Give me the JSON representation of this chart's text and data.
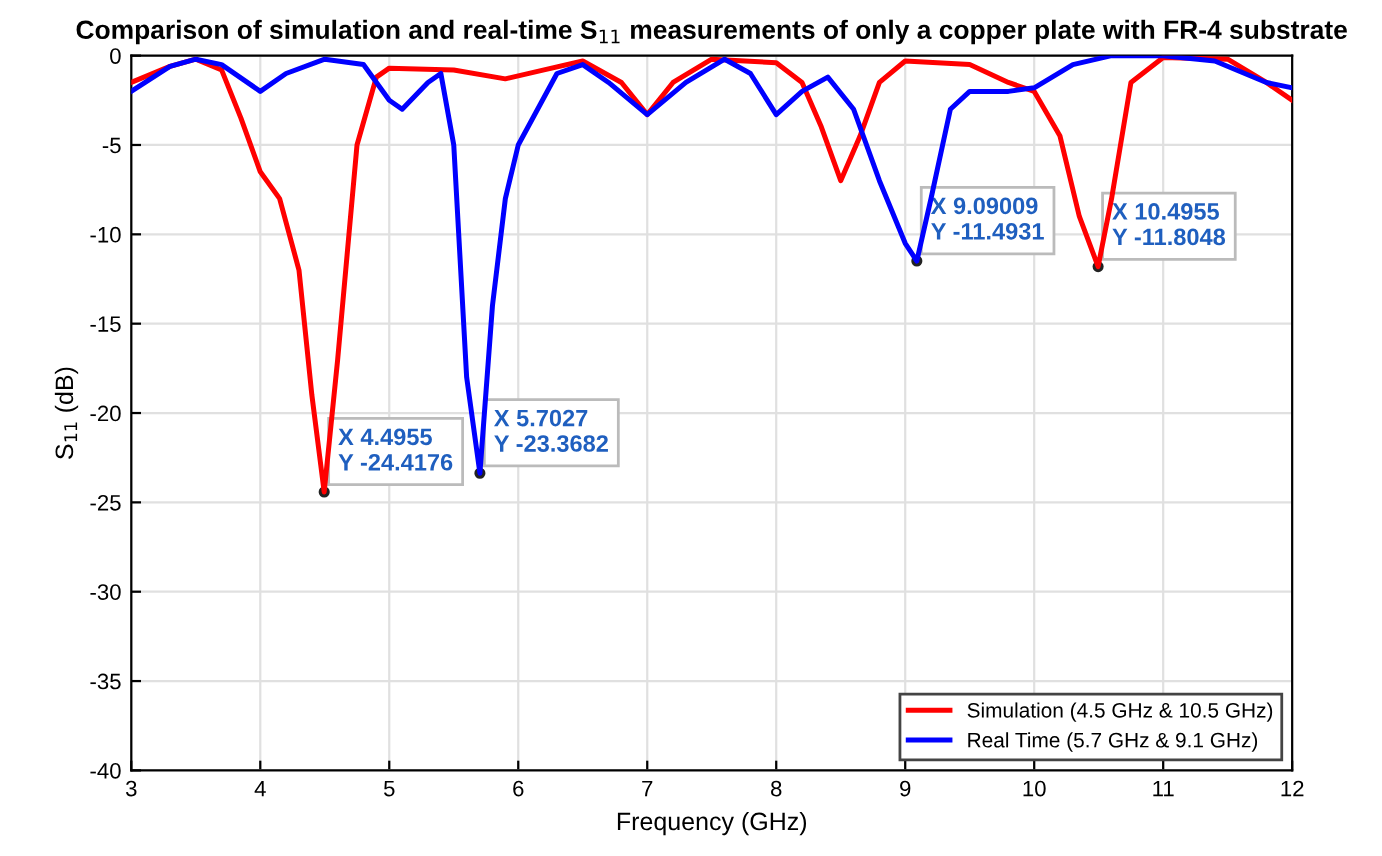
{
  "chart_data": {
    "type": "line",
    "title": "Comparison of simulation and real-time S$_{11}$ measurements of only a copper plate with FR-4 substrate",
    "xlabel": "Frequency (GHz)",
    "ylabel": "S$_{11}$ (dB)",
    "xlim": [
      3,
      12
    ],
    "ylim": [
      -40,
      0
    ],
    "xticks": [
      3,
      4,
      5,
      6,
      7,
      8,
      9,
      10,
      11,
      12
    ],
    "yticks": [
      -40,
      -35,
      -30,
      -25,
      -20,
      -15,
      -10,
      -5,
      0
    ],
    "grid": true,
    "legend": "bottom right",
    "line_style": "solid",
    "marker": "none",
    "series": [
      {
        "name": "Simulation (4.5 GHz & 10.5 GHz)",
        "color": "#ff0000",
        "x": [
          3.0,
          3.3,
          3.5,
          3.7,
          3.85,
          4.0,
          4.15,
          4.3,
          4.4,
          4.4955,
          4.6,
          4.75,
          4.9,
          5.0,
          5.5,
          5.9,
          6.2,
          6.5,
          6.8,
          7.0,
          7.2,
          7.5,
          8.0,
          8.2,
          8.35,
          8.5,
          8.65,
          8.8,
          9.0,
          9.5,
          9.8,
          10.0,
          10.2,
          10.35,
          10.4955,
          10.6,
          10.75,
          11.0,
          11.5,
          11.8,
          12.0
        ],
        "values": [
          -1.5,
          -0.6,
          -0.2,
          -0.8,
          -3.5,
          -6.5,
          -8,
          -12,
          -19,
          -24.4176,
          -17,
          -5,
          -1.2,
          -0.7,
          -0.8,
          -1.3,
          -0.8,
          -0.3,
          -1.5,
          -3.3,
          -1.5,
          -0.2,
          -0.4,
          -1.5,
          -4,
          -7,
          -4.5,
          -1.5,
          -0.3,
          -0.5,
          -1.5,
          -2,
          -4.5,
          -9,
          -11.8048,
          -8,
          -1.5,
          -0.1,
          -0.2,
          -1.5,
          -2.5
        ]
      },
      {
        "name": "Real Time (5.7 GHz & 9.1 GHz)",
        "color": "#0000ff",
        "x": [
          3.0,
          3.3,
          3.5,
          3.7,
          4.0,
          4.2,
          4.5,
          4.8,
          5.0,
          5.1,
          5.3,
          5.4,
          5.5,
          5.6,
          5.7027,
          5.8,
          5.9,
          6.0,
          6.3,
          6.5,
          6.7,
          7.0,
          7.3,
          7.6,
          7.8,
          8.0,
          8.2,
          8.4,
          8.6,
          8.8,
          9.0,
          9.09009,
          9.2,
          9.35,
          9.5,
          9.8,
          10.0,
          10.3,
          10.6,
          11.0,
          11.4,
          11.8,
          12.0
        ],
        "values": [
          -2,
          -0.6,
          -0.2,
          -0.5,
          -2,
          -1,
          -0.2,
          -0.5,
          -2.5,
          -3,
          -1.5,
          -1,
          -5,
          -18,
          -23.3682,
          -14,
          -8,
          -5,
          -1,
          -0.5,
          -1.5,
          -3.3,
          -1.5,
          -0.2,
          -1,
          -3.3,
          -2,
          -1.2,
          -3,
          -7,
          -10.5,
          -11.4931,
          -8,
          -3,
          -2,
          -2,
          -1.8,
          -0.5,
          0,
          0,
          -0.3,
          -1.5,
          -1.8
        ]
      }
    ],
    "annotations": [
      {
        "text": "X 4.4955\nY -24.4176",
        "x": 4.4955,
        "y": -24.4176
      },
      {
        "text": "X 5.7027\nY -23.3682",
        "x": 5.7027,
        "y": -23.3682
      },
      {
        "text": "X 9.09009\nY -11.4931",
        "x": 9.09009,
        "y": -11.4931
      },
      {
        "text": "X 10.4955\nY -11.8048",
        "x": 10.4955,
        "y": -11.8048
      }
    ]
  }
}
